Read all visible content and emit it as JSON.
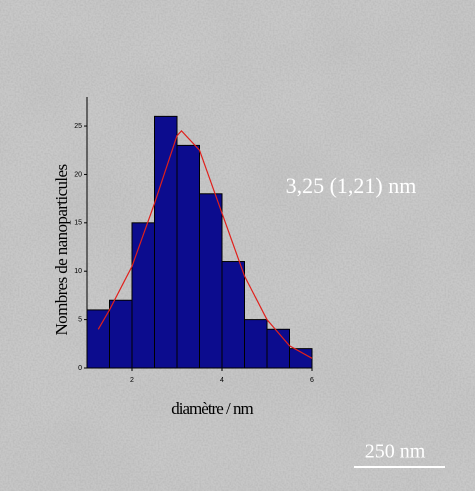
{
  "chart_data": {
    "type": "histogram",
    "annotation": "3,25 (1,21) nm",
    "scale_bar": "250 nm",
    "x_label": "diamètre / nm",
    "y_label": "Nombres de nanoparticules",
    "bins": [
      1,
      1.5,
      2,
      2.5,
      3,
      3.5,
      4,
      4.5,
      5,
      5.5,
      6
    ],
    "values": [
      6,
      7,
      15,
      26,
      23,
      18,
      11,
      5,
      4,
      2
    ],
    "color": "#0c0c8e",
    "xlim": [
      1,
      6
    ],
    "xticks": [
      2,
      4,
      6
    ],
    "ylim": [
      0,
      28
    ],
    "yticks": [
      0,
      5,
      10,
      15,
      20,
      25
    ],
    "fit": {
      "color": "#e0201c",
      "x": [
        1.25,
        1.5,
        2,
        2.5,
        3,
        3.1,
        3.5,
        4,
        4.5,
        5,
        5.5,
        6
      ],
      "values": [
        4,
        6,
        10.5,
        17,
        24,
        24.5,
        22.5,
        16,
        9.5,
        5,
        2.3,
        1
      ]
    }
  }
}
